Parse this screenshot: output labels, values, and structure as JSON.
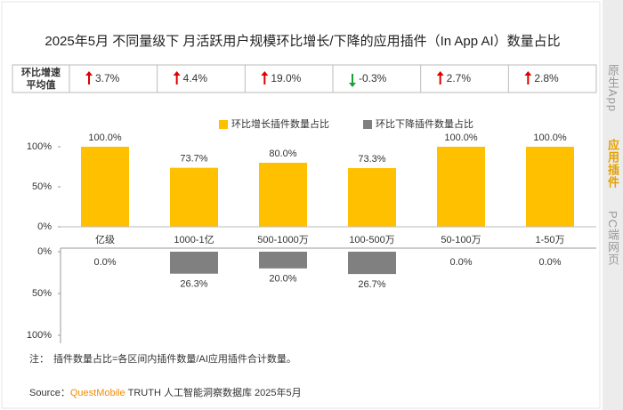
{
  "title": "2025年5月 不同量级下 月活跃用户规模环比增长/下降的应用插件（In App AI）数量占比",
  "growth_row": {
    "label": [
      "环比增速",
      "平均值"
    ],
    "values": [
      "3.7%",
      "4.4%",
      "19.0%",
      "-0.3%",
      "2.7%",
      "2.8%"
    ]
  },
  "chart_data": [
    {
      "type": "bar",
      "categories": [
        "亿级",
        "1000-1亿",
        "500-1000万",
        "100-500万",
        "50-100万",
        "1-50万"
      ],
      "series": [
        {
          "name": "环比增长插件数量占比",
          "color": "#ffc000",
          "values": [
            100,
            73.7,
            80,
            73.3,
            100,
            100
          ],
          "value_labels": [
            "100.0%",
            "73.7%",
            "80.0%",
            "73.3%",
            "100.0%",
            "100.0%"
          ]
        }
      ],
      "ylim": [
        0,
        100
      ],
      "yticks": [
        {
          "value": 0,
          "label": "0%"
        },
        {
          "value": 50,
          "label": "50%"
        },
        {
          "value": 100,
          "label": "100%"
        }
      ]
    },
    {
      "type": "bar",
      "invert_y": true,
      "series": [
        {
          "name": "环比下降插件数量占比",
          "color": "#808080",
          "values": [
            0,
            26.3,
            20,
            26.7,
            0,
            0
          ],
          "value_labels": [
            "0.0%",
            "26.3%",
            "20.0%",
            "26.7%",
            "0.0%",
            "0.0%"
          ]
        }
      ],
      "ylim": [
        0,
        100
      ],
      "yticks": [
        {
          "value": 0,
          "label": "0%"
        },
        {
          "value": 50,
          "label": "50%"
        },
        {
          "value": 100,
          "label": "100%"
        }
      ]
    }
  ],
  "tabs": [
    "原生App",
    "应用插件",
    "PC端网页"
  ],
  "active_tab": 1,
  "note": {
    "label": "注：",
    "text": "插件数量占比=各区间内插件数量/AI应用插件合计数量。"
  },
  "source": {
    "label": "Source：",
    "brand": "QuestMobile",
    "text": "TRUTH 人工智能洞察数据库 2025年5月"
  }
}
